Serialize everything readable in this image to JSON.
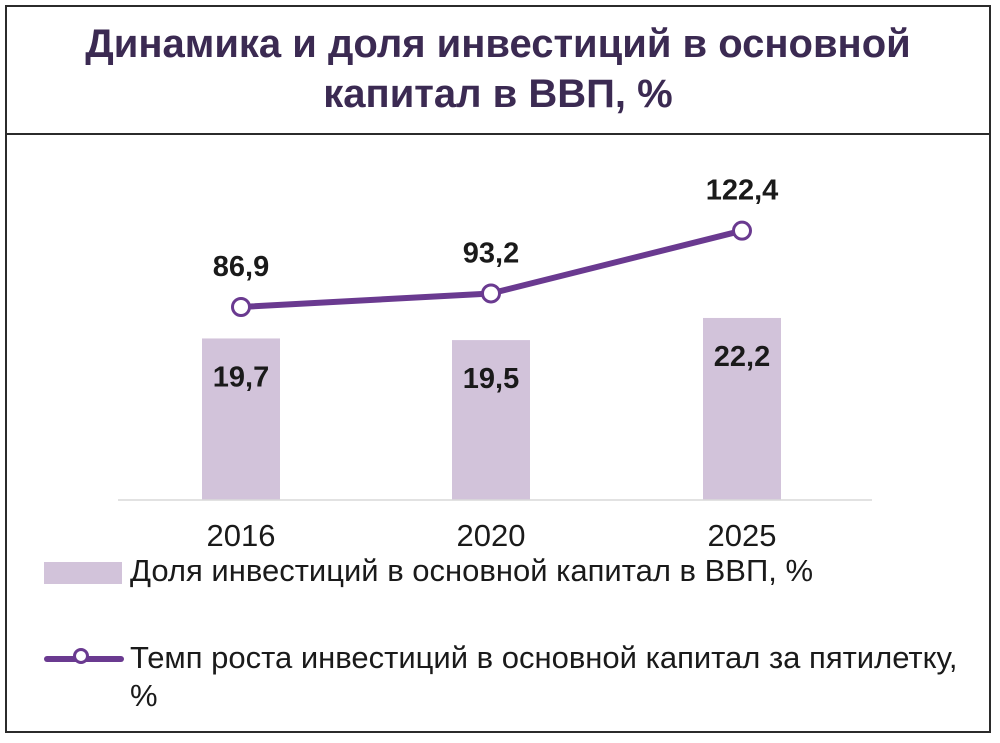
{
  "chart_data": {
    "type": "bar+line",
    "title_lines": [
      "Динамика и доля инвестиций в основной",
      "капитал в ВВП, %"
    ],
    "categories": [
      "2016",
      "2020",
      "2025"
    ],
    "series": [
      {
        "name": "Доля инвестиций в основной капитал в ВВП, %",
        "kind": "bar",
        "values": [
          19.7,
          19.5,
          22.2
        ],
        "labels": [
          "19,7",
          "19,5",
          "22,2"
        ],
        "color": "#d2c3da"
      },
      {
        "name": "Темп роста инвестиций в основной капитал за пятилетку, %",
        "kind": "line",
        "values": [
          86.9,
          93.2,
          122.4
        ],
        "labels": [
          "86,9",
          "93,2",
          "122,4"
        ],
        "color": "#6a3a90"
      }
    ],
    "legend_lines": {
      "bar": [
        "Доля инвестиций в основной капитал в ВВП, %"
      ],
      "line": [
        "Темп роста инвестиций в основной капитал за пятилетку,",
        "%"
      ]
    },
    "grid": false,
    "legend_position": "bottom-left"
  }
}
